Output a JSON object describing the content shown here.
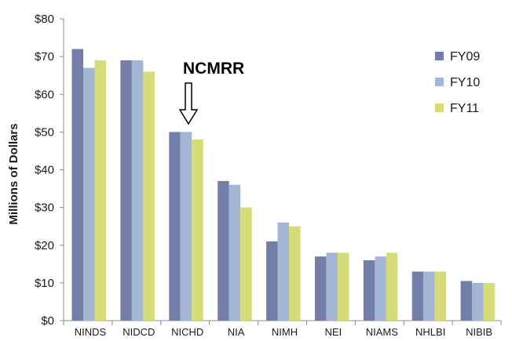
{
  "chart_data": {
    "type": "bar",
    "title": "",
    "xlabel": "",
    "ylabel": "Millions of Dollars",
    "ylim": [
      0,
      80
    ],
    "yticks": [
      "$0",
      "$10",
      "$20",
      "$30",
      "$40",
      "$50",
      "$60",
      "$70",
      "$80"
    ],
    "categories": [
      "NINDS",
      "NIDCD",
      "NICHD",
      "NIA",
      "NIMH",
      "NEI",
      "NIAMS",
      "NHLBI",
      "NIBIB"
    ],
    "series": [
      {
        "name": "FY09",
        "color": "#737fa8",
        "values": [
          72,
          69,
          50,
          37,
          21,
          17,
          16,
          13,
          10.5
        ]
      },
      {
        "name": "FY10",
        "color": "#a3b6d4",
        "values": [
          67,
          69,
          50,
          36,
          26,
          18,
          17,
          13,
          10
        ]
      },
      {
        "name": "FY11",
        "color": "#d6dc78",
        "values": [
          69,
          66,
          48,
          30,
          25,
          18,
          18,
          13,
          10
        ]
      }
    ],
    "legend_position": "top-right",
    "grid": false,
    "annotation": {
      "text": "NCMRR",
      "points_to": "NICHD"
    }
  }
}
